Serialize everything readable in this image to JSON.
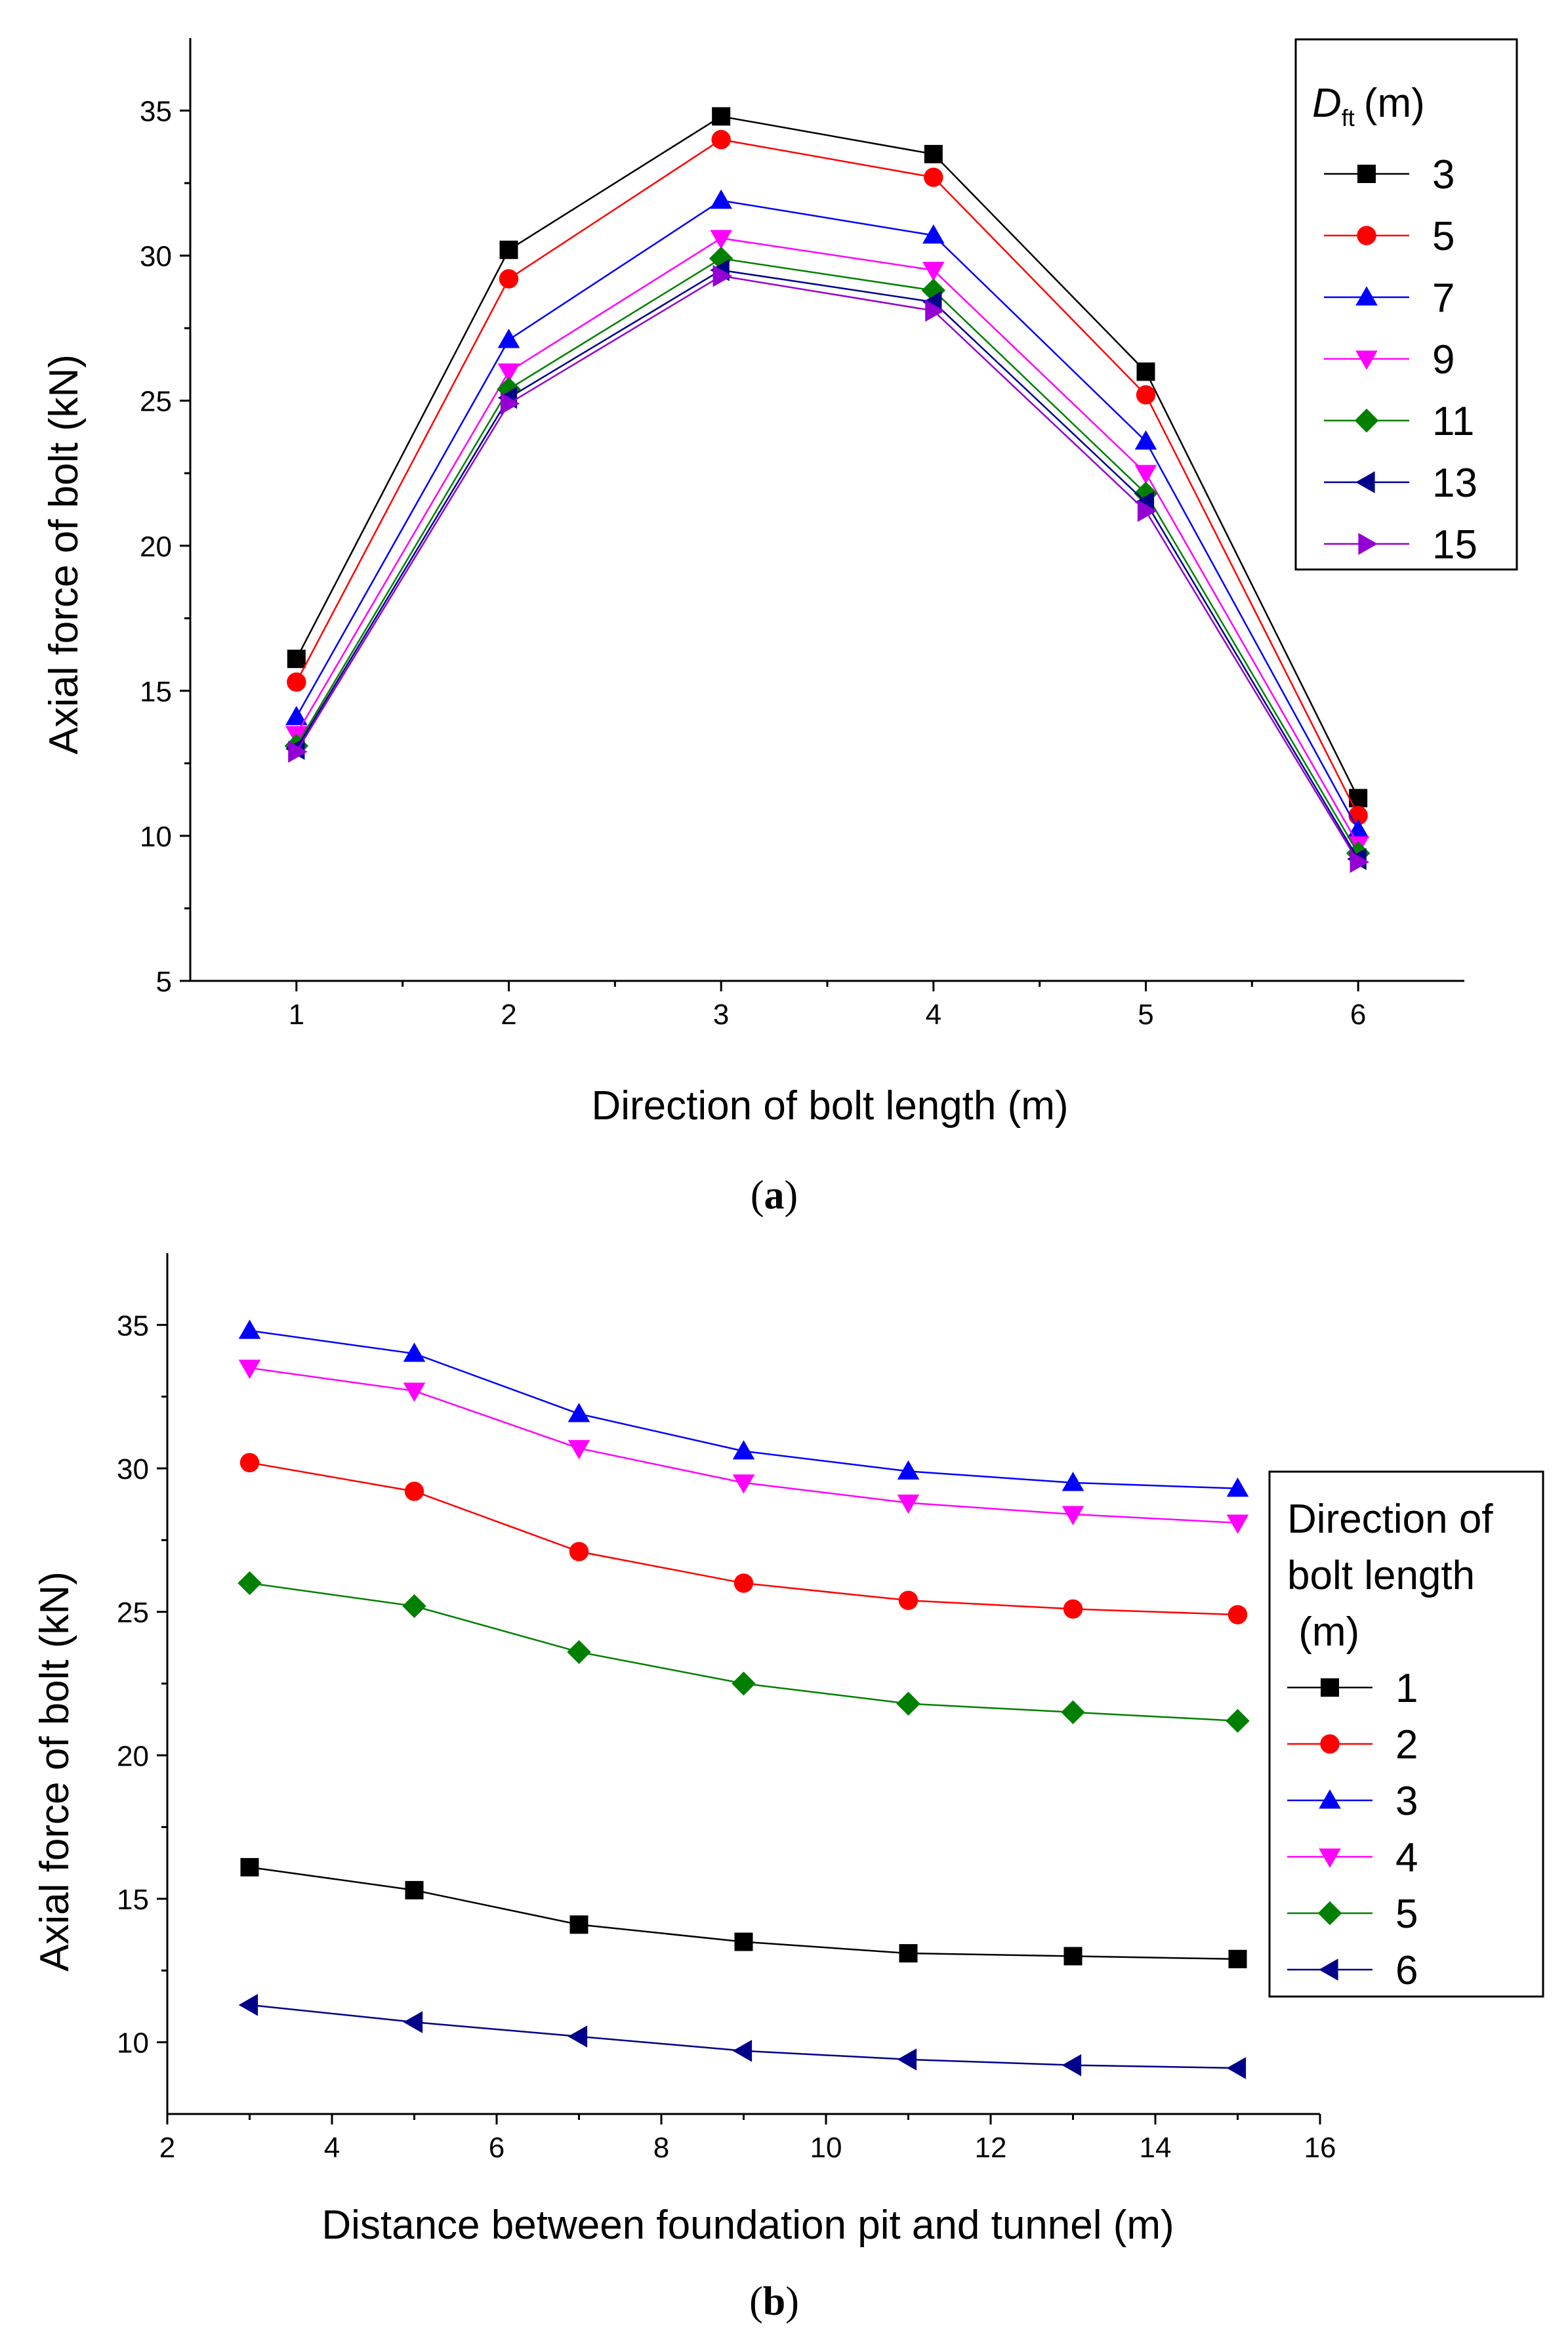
{
  "chart_data": [
    {
      "type": "line",
      "caption": "(a)",
      "caption_letter": "a",
      "xlabel": "Direction of bolt length (m)",
      "ylabel": "Axial force of bolt (kN)",
      "xlim": [
        0.5,
        6.5
      ],
      "ylim": [
        5,
        37.5
      ],
      "xticks": [
        "1",
        "2",
        "3",
        "4",
        "5",
        "6"
      ],
      "yticks": [
        "5",
        "10",
        "15",
        "20",
        "25",
        "30",
        "35"
      ],
      "grid": false,
      "legend": {
        "title_main": "D",
        "title_sub": "ft",
        "title_unit": "(m)",
        "position": "top-right"
      },
      "x": [
        1,
        2,
        3,
        4,
        5,
        6
      ],
      "series": [
        {
          "name": "3",
          "color": "#000000",
          "marker": "square",
          "values": [
            16.1,
            30.2,
            34.8,
            33.5,
            26.0,
            11.3
          ]
        },
        {
          "name": "5",
          "color": "#ff0000",
          "marker": "circle",
          "values": [
            15.3,
            29.2,
            34.0,
            32.7,
            25.2,
            10.7
          ]
        },
        {
          "name": "7",
          "color": "#0000ff",
          "marker": "triangle-up",
          "values": [
            14.1,
            27.1,
            31.9,
            30.7,
            23.6,
            10.2
          ]
        },
        {
          "name": "9",
          "color": "#ff00ff",
          "marker": "triangle-down",
          "values": [
            13.5,
            26.0,
            30.6,
            29.5,
            22.5,
            9.7
          ]
        },
        {
          "name": "11",
          "color": "#008000",
          "marker": "diamond",
          "values": [
            13.1,
            25.4,
            29.9,
            28.8,
            21.8,
            9.4
          ]
        },
        {
          "name": "13",
          "color": "#00008b",
          "marker": "triangle-left",
          "values": [
            13.0,
            25.1,
            29.5,
            28.4,
            21.5,
            9.2
          ]
        },
        {
          "name": "15",
          "color": "#9400d3",
          "marker": "triangle-right",
          "values": [
            12.9,
            24.9,
            29.3,
            28.1,
            21.2,
            9.1
          ]
        }
      ]
    },
    {
      "type": "line",
      "caption": "(b)",
      "caption_letter": "b",
      "xlabel": "Distance between foundation pit and tunnel (m)",
      "ylabel": "Axial force of bolt (kN)",
      "xlim": [
        2,
        16
      ],
      "ylim": [
        7.5,
        37.5
      ],
      "xticks": [
        "2",
        "4",
        "6",
        "8",
        "10",
        "12",
        "14",
        "16"
      ],
      "yticks": [
        "10",
        "15",
        "20",
        "25",
        "30",
        "35"
      ],
      "grid": false,
      "legend": {
        "title_lines": [
          "Direction of",
          "bolt length",
          " (m)"
        ],
        "position": "right"
      },
      "x": [
        3,
        5,
        7,
        9,
        11,
        13,
        15
      ],
      "series": [
        {
          "name": "1",
          "color": "#000000",
          "marker": "square",
          "values": [
            16.1,
            15.3,
            14.1,
            13.5,
            13.1,
            13.0,
            12.9
          ]
        },
        {
          "name": "2",
          "color": "#ff0000",
          "marker": "circle",
          "values": [
            30.2,
            29.2,
            27.1,
            26.0,
            25.4,
            25.1,
            24.9
          ]
        },
        {
          "name": "3",
          "color": "#0000ff",
          "marker": "triangle-up",
          "values": [
            34.8,
            34.0,
            31.9,
            30.6,
            29.9,
            29.5,
            29.3
          ]
        },
        {
          "name": "4",
          "color": "#ff00ff",
          "marker": "triangle-down",
          "values": [
            33.5,
            32.7,
            30.7,
            29.5,
            28.8,
            28.4,
            28.1
          ]
        },
        {
          "name": "5",
          "color": "#008000",
          "marker": "diamond",
          "values": [
            26.0,
            25.2,
            23.6,
            22.5,
            21.8,
            21.5,
            21.2
          ]
        },
        {
          "name": "6",
          "color": "#00008b",
          "marker": "triangle-left",
          "values": [
            11.3,
            10.7,
            10.2,
            9.7,
            9.4,
            9.2,
            9.1
          ]
        }
      ]
    }
  ]
}
